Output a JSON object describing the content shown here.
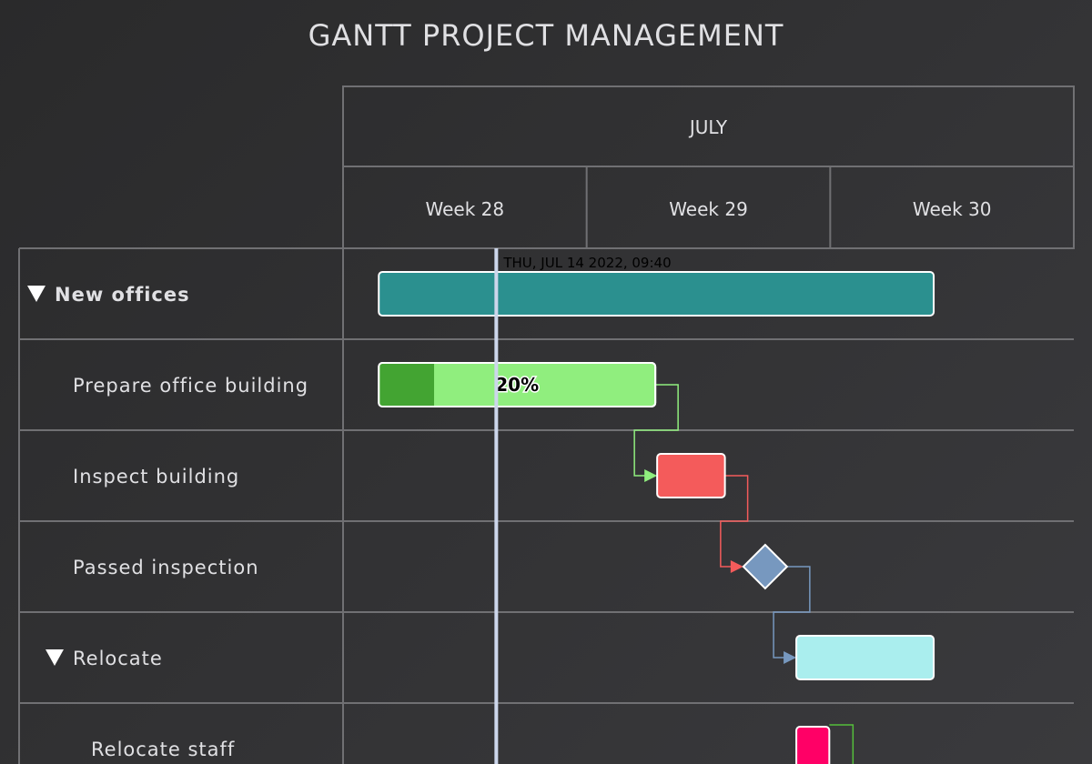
{
  "title": "GANTT PROJECT MANAGEMENT",
  "chart_data": {
    "type": "gantt",
    "title": "GANTT PROJECT MANAGEMENT",
    "x_axis": {
      "min": "2022-07-10",
      "max": "2022-07-31",
      "month_label": "JULY",
      "weeks": [
        {
          "label": "Week 28",
          "start": "2022-07-10",
          "end": "2022-07-17"
        },
        {
          "label": "Week 29",
          "start": "2022-07-17",
          "end": "2022-07-24"
        },
        {
          "label": "Week 30",
          "start": "2022-07-24",
          "end": "2022-07-31"
        }
      ]
    },
    "current_date_indicator": {
      "date": "2022-07-14T09:40",
      "label": "THU, JUL 14 2022, 09:40"
    },
    "rows": [
      {
        "id": "new_offices",
        "name": "New offices",
        "level": 0,
        "collapsible": true
      },
      {
        "id": "prepare_building",
        "name": "Prepare office building",
        "level": 1
      },
      {
        "id": "inspect_building",
        "name": "Inspect building",
        "level": 1
      },
      {
        "id": "passed_inspection",
        "name": "Passed inspection",
        "level": 1
      },
      {
        "id": "relocate",
        "name": "Relocate",
        "level": 1,
        "collapsible": true
      },
      {
        "id": "relocate_staff",
        "name": "Relocate staff",
        "level": 2
      }
    ],
    "tasks": [
      {
        "row": "new_offices",
        "start": "2022-07-11",
        "end": "2022-07-27",
        "color": "#2b908f"
      },
      {
        "row": "prepare_building",
        "start": "2022-07-11",
        "end": "2022-07-19",
        "color": "#90ee7e",
        "completed": 0.2,
        "completed_color": "#43a432",
        "label": "20%"
      },
      {
        "row": "inspect_building",
        "start": "2022-07-19",
        "end": "2022-07-21",
        "color": "#f45b5b",
        "dependency": "prepare_building"
      },
      {
        "row": "passed_inspection",
        "milestone": "2022-07-22",
        "color": "#7798bf",
        "dependency": "inspect_building"
      },
      {
        "row": "relocate",
        "start": "2022-07-23",
        "end": "2022-07-27",
        "color": "#aaeeee",
        "dependency": "passed_inspection"
      },
      {
        "row": "relocate_staff",
        "start": "2022-07-23",
        "end": "2022-07-24",
        "color": "#ff0066",
        "dependency_out_color": "#55bf3b"
      }
    ]
  }
}
